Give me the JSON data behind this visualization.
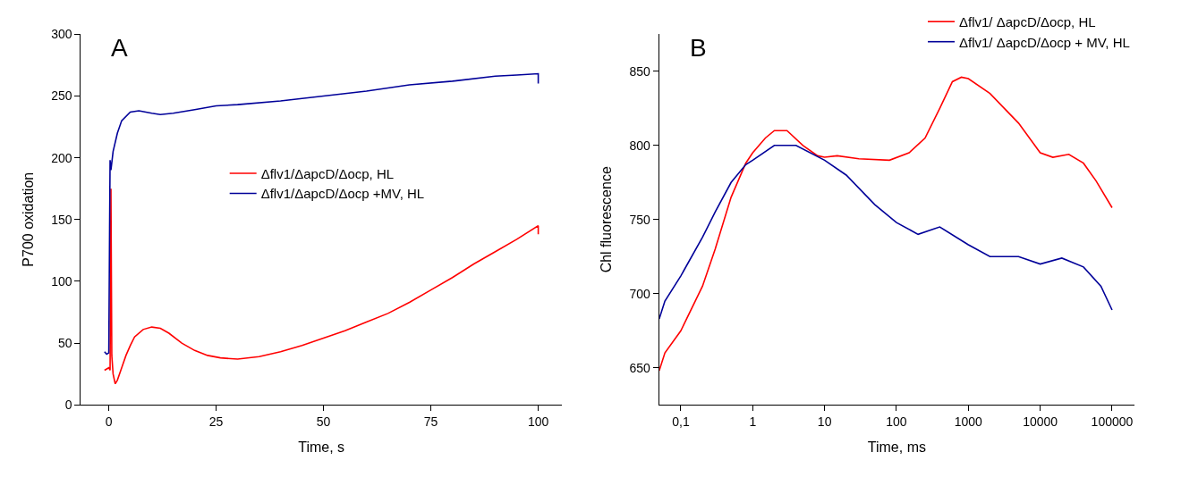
{
  "chart_data": [
    {
      "type": "line",
      "title": "A",
      "xlabel": "Time, s",
      "ylabel": "P700 oxidation",
      "xlim": [
        -6.5,
        105.5
      ],
      "ylim": [
        0,
        300
      ],
      "xticks": [
        0,
        25,
        50,
        75,
        100
      ],
      "yticks": [
        0,
        50,
        100,
        150,
        200,
        250,
        300
      ],
      "legend": "right",
      "marker": "none",
      "line_style": "solid",
      "series": [
        {
          "name": "Δflv1/ΔapcD/Δocp, HL",
          "color": "#ff0000",
          "x": [
            -1,
            0,
            0.3,
            0.5,
            0.7,
            1,
            1.5,
            2,
            3,
            4,
            5,
            6,
            8,
            10,
            12,
            14,
            17,
            20,
            23,
            26,
            30,
            35,
            40,
            45,
            50,
            55,
            60,
            65,
            70,
            75,
            80,
            85,
            90,
            95,
            100,
            100
          ],
          "values": [
            28,
            30,
            28,
            175,
            40,
            25,
            17,
            20,
            30,
            40,
            48,
            55,
            61,
            63,
            62,
            58,
            50,
            44,
            40,
            38,
            37,
            39,
            43,
            48,
            54,
            60,
            67,
            74,
            83,
            93,
            103,
            114,
            124,
            134,
            145,
            138
          ]
        },
        {
          "name": "Δflv1/ΔapcD/Δocp +MV, HL",
          "color": "#000099",
          "x": [
            -1,
            -0.5,
            0,
            0.2,
            0.3,
            0.5,
            1,
            2,
            3,
            5,
            7,
            10,
            12,
            15,
            20,
            25,
            30,
            40,
            50,
            60,
            70,
            80,
            90,
            95,
            100,
            100
          ],
          "values": [
            43,
            41,
            42,
            150,
            198,
            190,
            205,
            220,
            230,
            237,
            238,
            236,
            235,
            236,
            239,
            242,
            243,
            246,
            250,
            254,
            259,
            262,
            266,
            267,
            268,
            260
          ]
        }
      ]
    },
    {
      "type": "line",
      "title": "B",
      "xlabel": "Time, ms",
      "ylabel": "Chl fluorescence",
      "log": "x",
      "xlim": [
        0.05,
        205000
      ],
      "ylim": [
        625,
        875
      ],
      "xticks": [
        {
          "value": 0.1,
          "label": "0,1"
        },
        1,
        10,
        100,
        1000,
        10000,
        100000
      ],
      "yticks": [
        650,
        700,
        750,
        800,
        850
      ],
      "legend": "top right",
      "marker": "none",
      "line_style": "solid",
      "series": [
        {
          "name": "Δflv1/ ΔapcD/Δocp, HL",
          "color": "#ff0000",
          "x": [
            0.05,
            0.06,
            0.1,
            0.2,
            0.3,
            0.5,
            0.8,
            1,
            1.5,
            2,
            3,
            5,
            8,
            10,
            15,
            30,
            80,
            150,
            250,
            400,
            600,
            800,
            1000,
            2000,
            5000,
            10000,
            15000,
            25000,
            40000,
            60000,
            100000
          ],
          "values": [
            648,
            660,
            675,
            705,
            730,
            765,
            788,
            795,
            805,
            810,
            810,
            800,
            793,
            792,
            793,
            791,
            790,
            795,
            805,
            825,
            843,
            846,
            845,
            835,
            815,
            795,
            792,
            794,
            788,
            776,
            758
          ]
        },
        {
          "name": "Δflv1/ ΔapcD/Δocp + MV, HL",
          "color": "#000099",
          "x": [
            0.05,
            0.06,
            0.1,
            0.2,
            0.3,
            0.5,
            0.8,
            1,
            2,
            4,
            10,
            20,
            50,
            100,
            200,
            400,
            1000,
            2000,
            5000,
            10000,
            20000,
            40000,
            70000,
            100000
          ],
          "values": [
            683,
            695,
            712,
            738,
            755,
            775,
            787,
            790,
            800,
            800,
            790,
            780,
            760,
            748,
            740,
            745,
            733,
            725,
            725,
            720,
            724,
            718,
            705,
            689
          ]
        }
      ]
    }
  ]
}
